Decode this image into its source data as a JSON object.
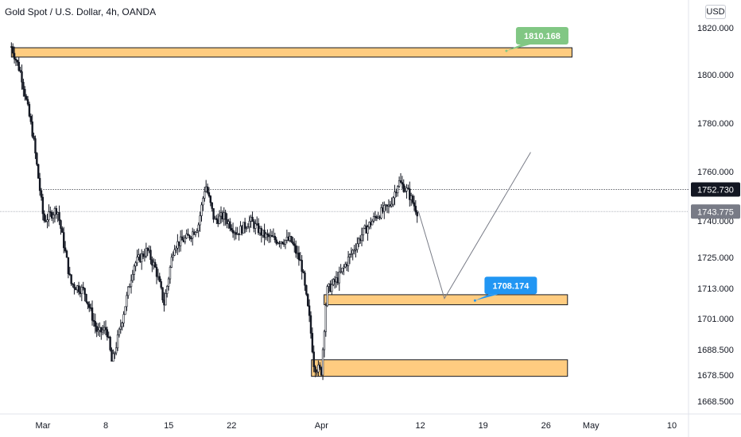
{
  "header": {
    "title": "Gold Spot / U.S. Dollar, 4h, OANDA",
    "currency": "USD"
  },
  "chart_data": {
    "type": "candlestick",
    "title": "Gold Spot / U.S. Dollar, 4h, OANDA",
    "x_ticks": [
      {
        "label": "Mar",
        "day": 0
      },
      {
        "label": "8",
        "day": 7
      },
      {
        "label": "15",
        "day": 14
      },
      {
        "label": "22",
        "day": 21
      },
      {
        "label": "Apr",
        "day": 31
      },
      {
        "label": "12",
        "day": 42
      },
      {
        "label": "19",
        "day": 49
      },
      {
        "label": "26",
        "day": 56
      },
      {
        "label": "May",
        "day": 61
      },
      {
        "label": "10",
        "day": 70
      }
    ],
    "y_ticks": [
      {
        "label": "1820.000",
        "value": 1820
      },
      {
        "label": "1800.000",
        "value": 1800
      },
      {
        "label": "1780.000",
        "value": 1780
      },
      {
        "label": "1760.000",
        "value": 1760
      },
      {
        "label": "1740.000",
        "value": 1740
      },
      {
        "label": "1725.000",
        "value": 1725
      },
      {
        "label": "1713.000",
        "value": 1713
      },
      {
        "label": "1701.000",
        "value": 1701
      },
      {
        "label": "1688.500",
        "value": 1688.5
      },
      {
        "label": "1678.500",
        "value": 1678.5
      },
      {
        "label": "1668.500",
        "value": 1668.5
      }
    ],
    "price_path": [
      {
        "day": -3.6,
        "price": 1812
      },
      {
        "day": -2.5,
        "price": 1800
      },
      {
        "day": -1.2,
        "price": 1775
      },
      {
        "day": 0,
        "price": 1740
      },
      {
        "day": 1.5,
        "price": 1745
      },
      {
        "day": 3,
        "price": 1715
      },
      {
        "day": 4.5,
        "price": 1712
      },
      {
        "day": 6,
        "price": 1695
      },
      {
        "day": 7,
        "price": 1697
      },
      {
        "day": 7.6,
        "price": 1683
      },
      {
        "day": 8.5,
        "price": 1697
      },
      {
        "day": 10,
        "price": 1722
      },
      {
        "day": 11.5,
        "price": 1728
      },
      {
        "day": 12.5,
        "price": 1720
      },
      {
        "day": 13.4,
        "price": 1707
      },
      {
        "day": 14.5,
        "price": 1730
      },
      {
        "day": 16,
        "price": 1733
      },
      {
        "day": 17.2,
        "price": 1738
      },
      {
        "day": 18,
        "price": 1755
      },
      {
        "day": 19,
        "price": 1740
      },
      {
        "day": 20,
        "price": 1742
      },
      {
        "day": 21.5,
        "price": 1735
      },
      {
        "day": 23,
        "price": 1740
      },
      {
        "day": 24.5,
        "price": 1734
      },
      {
        "day": 26,
        "price": 1732
      },
      {
        "day": 27.5,
        "price": 1732
      },
      {
        "day": 28.7,
        "price": 1722
      },
      {
        "day": 29.6,
        "price": 1700
      },
      {
        "day": 30.1,
        "price": 1682
      },
      {
        "day": 30.9,
        "price": 1680
      },
      {
        "day": 31.5,
        "price": 1712
      },
      {
        "day": 32.8,
        "price": 1717
      },
      {
        "day": 34,
        "price": 1725
      },
      {
        "day": 35.5,
        "price": 1735
      },
      {
        "day": 37,
        "price": 1742
      },
      {
        "day": 38.5,
        "price": 1746
      },
      {
        "day": 39.5,
        "price": 1756
      },
      {
        "day": 40.5,
        "price": 1752
      },
      {
        "day": 41.4,
        "price": 1745
      },
      {
        "day": 41.7,
        "price": 1743
      }
    ],
    "zones": [
      {
        "name": "resistance-1810",
        "day_from": -3.6,
        "day_to": 58.8,
        "price_low": 1807.5,
        "price_high": 1811.5
      },
      {
        "name": "support-1708",
        "day_from": 31.2,
        "day_to": 58.3,
        "price_low": 1706.5,
        "price_high": 1710.5
      },
      {
        "name": "support-1680",
        "day_from": 29.8,
        "day_to": 58.3,
        "price_low": 1678,
        "price_high": 1684.5
      }
    ],
    "annotations": [
      {
        "label": "1810.168",
        "price": 1810.168,
        "day": 51.5,
        "color": "#81c784"
      },
      {
        "label": "1708.174",
        "price": 1708.174,
        "day": 48,
        "color": "#2196f3"
      }
    ],
    "projection": [
      {
        "day": 41.7,
        "price": 1744
      },
      {
        "day": 44.6,
        "price": 1709
      },
      {
        "day": 54.2,
        "price": 1768
      }
    ],
    "price_lines": [
      {
        "label": "1752.730",
        "value": 1752.73,
        "style": "dotted",
        "badge": "#131722"
      },
      {
        "label": "1743.775",
        "value": 1743.775,
        "style": "faint",
        "badge": "#787b86"
      }
    ],
    "grid": false,
    "colors": {
      "zone_fill": "#ffcc80",
      "zone_edge": "#131722",
      "candle": "#131722",
      "axis_text": "#131722"
    }
  }
}
